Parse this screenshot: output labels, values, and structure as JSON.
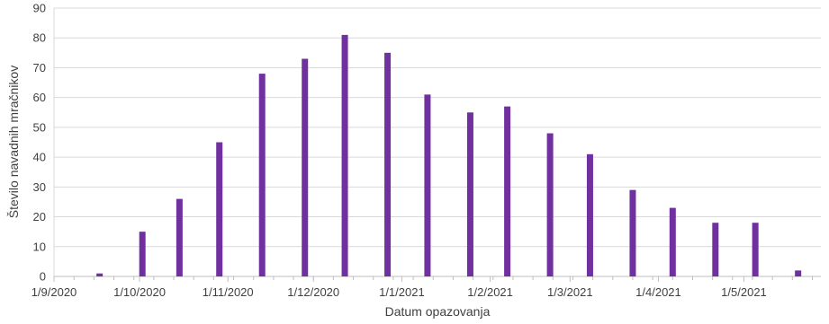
{
  "chart_data": {
    "type": "bar",
    "xlabel": "Datum opazovanja",
    "ylabel": "Število navadnih mračnikov",
    "ylim": [
      0,
      90
    ],
    "yticks": [
      0,
      10,
      20,
      30,
      40,
      50,
      60,
      70,
      80,
      90
    ],
    "xlim": [
      "2020-09-01",
      "2021-05-28"
    ],
    "xticks": [
      {
        "date": "2020-09-01",
        "label": "1/9/2020"
      },
      {
        "date": "2020-10-01",
        "label": "1/10/2020"
      },
      {
        "date": "2020-11-01",
        "label": "1/11/2020"
      },
      {
        "date": "2020-12-01",
        "label": "1/12/2020"
      },
      {
        "date": "2021-01-01",
        "label": "1/1/2021"
      },
      {
        "date": "2021-02-01",
        "label": "1/2/2021"
      },
      {
        "date": "2021-03-01",
        "label": "1/3/2021"
      },
      {
        "date": "2021-04-01",
        "label": "1/4/2021"
      },
      {
        "date": "2021-05-01",
        "label": "1/5/2021"
      }
    ],
    "grid": true,
    "bar_color": "#7030a0",
    "points": [
      {
        "date": "2020-09-17",
        "value": 1
      },
      {
        "date": "2020-10-02",
        "value": 15
      },
      {
        "date": "2020-10-15",
        "value": 26
      },
      {
        "date": "2020-10-29",
        "value": 45
      },
      {
        "date": "2020-11-13",
        "value": 68
      },
      {
        "date": "2020-11-28",
        "value": 73
      },
      {
        "date": "2020-12-12",
        "value": 81
      },
      {
        "date": "2020-12-27",
        "value": 75
      },
      {
        "date": "2021-01-10",
        "value": 61
      },
      {
        "date": "2021-01-25",
        "value": 55
      },
      {
        "date": "2021-02-07",
        "value": 57
      },
      {
        "date": "2021-02-22",
        "value": 48
      },
      {
        "date": "2021-03-08",
        "value": 41
      },
      {
        "date": "2021-03-23",
        "value": 29
      },
      {
        "date": "2021-04-06",
        "value": 23
      },
      {
        "date": "2021-04-21",
        "value": 18
      },
      {
        "date": "2021-05-05",
        "value": 18
      },
      {
        "date": "2021-05-20",
        "value": 2
      }
    ]
  }
}
